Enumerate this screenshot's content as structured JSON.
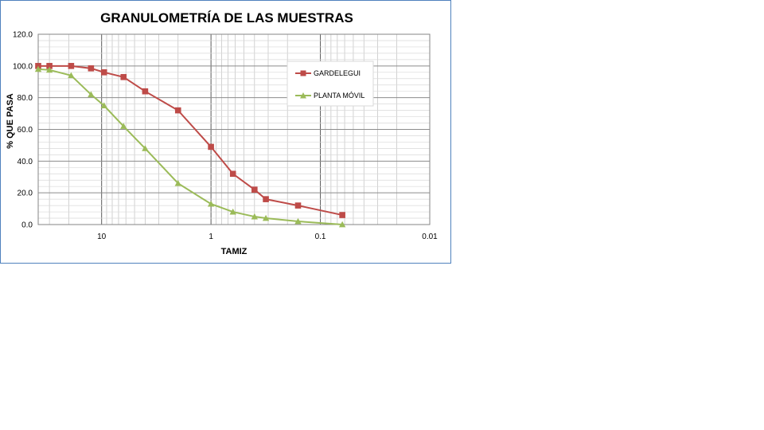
{
  "chart_data": {
    "type": "line",
    "title": "GRANULOMETRÍA DE LAS MUESTRAS",
    "xlabel": "TAMIZ",
    "ylabel": "% QUE PASA",
    "x_scale": "log",
    "x_reversed": true,
    "xlim": [
      38,
      0.01
    ],
    "ylim": [
      0,
      120
    ],
    "x_tick_labels": [
      "10",
      "1",
      "0.1",
      "0.01"
    ],
    "x_ticks": [
      10,
      1,
      0.1,
      0.01
    ],
    "y_ticks": [
      0,
      20,
      40,
      60,
      80,
      100,
      120
    ],
    "y_tick_labels": [
      "0.0",
      "20.0",
      "40.0",
      "60.0",
      "80.0",
      "100.0",
      "120.0"
    ],
    "grid": true,
    "legend_position": "top-right",
    "series": [
      {
        "name": "GARDELEGUI",
        "color": "#be4b48",
        "marker": "square",
        "x": [
          38,
          30,
          19,
          12.5,
          9.5,
          6.3,
          4,
          2,
          1,
          0.63,
          0.4,
          0.315,
          0.16,
          0.063
        ],
        "y": [
          100,
          100,
          100,
          98.5,
          96,
          93,
          84,
          72,
          49,
          32,
          22,
          16,
          12,
          6
        ]
      },
      {
        "name": "PLANTA MÓVIL",
        "color": "#9bbb59",
        "marker": "triangle",
        "x": [
          38,
          30,
          19,
          12.5,
          9.5,
          6.3,
          4,
          2,
          1,
          0.63,
          0.4,
          0.315,
          0.16,
          0.063
        ],
        "y": [
          98,
          97.5,
          94,
          82,
          75,
          62,
          48,
          26,
          13,
          8,
          5,
          4,
          2,
          0
        ]
      }
    ]
  }
}
